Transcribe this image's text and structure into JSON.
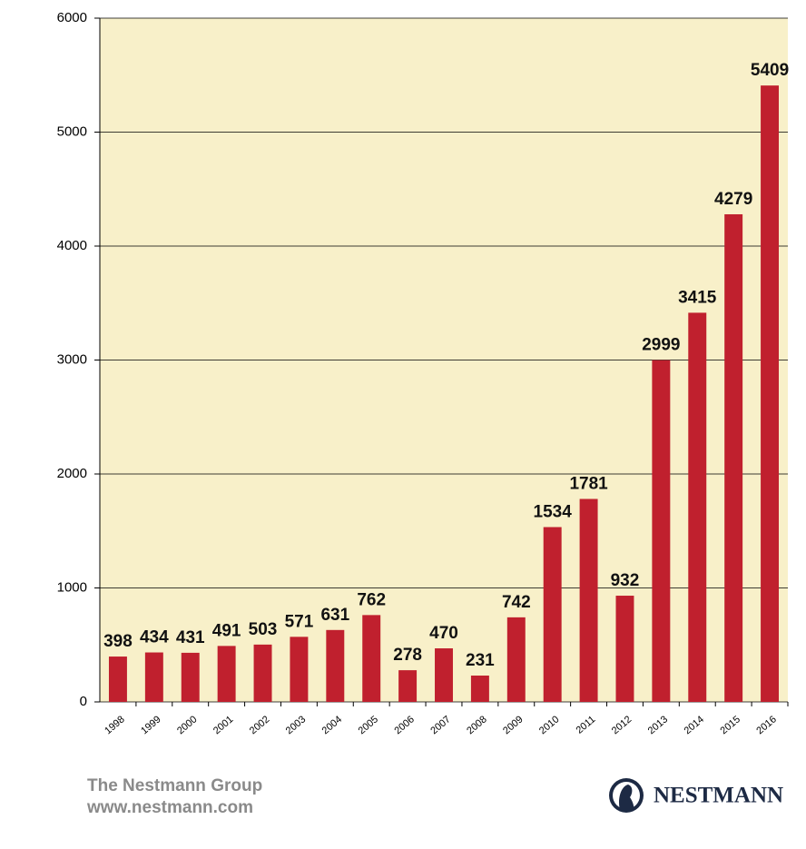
{
  "chart_data": {
    "type": "bar",
    "categories": [
      "1998",
      "1999",
      "2000",
      "2001",
      "2002",
      "2003",
      "2004",
      "2005",
      "2006",
      "2007",
      "2008",
      "2009",
      "2010",
      "2011",
      "2012",
      "2013",
      "2014",
      "2015",
      "2016"
    ],
    "values": [
      398,
      434,
      431,
      491,
      503,
      571,
      631,
      762,
      278,
      470,
      231,
      742,
      1534,
      1781,
      932,
      2999,
      3415,
      4279,
      5409
    ],
    "color": "#c0202e",
    "ylim": [
      0,
      6000
    ],
    "yticks": [
      0,
      1000,
      2000,
      3000,
      4000,
      5000,
      6000
    ],
    "grid": true
  },
  "footer": {
    "company": "The Nestmann Group",
    "url": "www.nestmann.com",
    "logo": "NESTMANN"
  }
}
